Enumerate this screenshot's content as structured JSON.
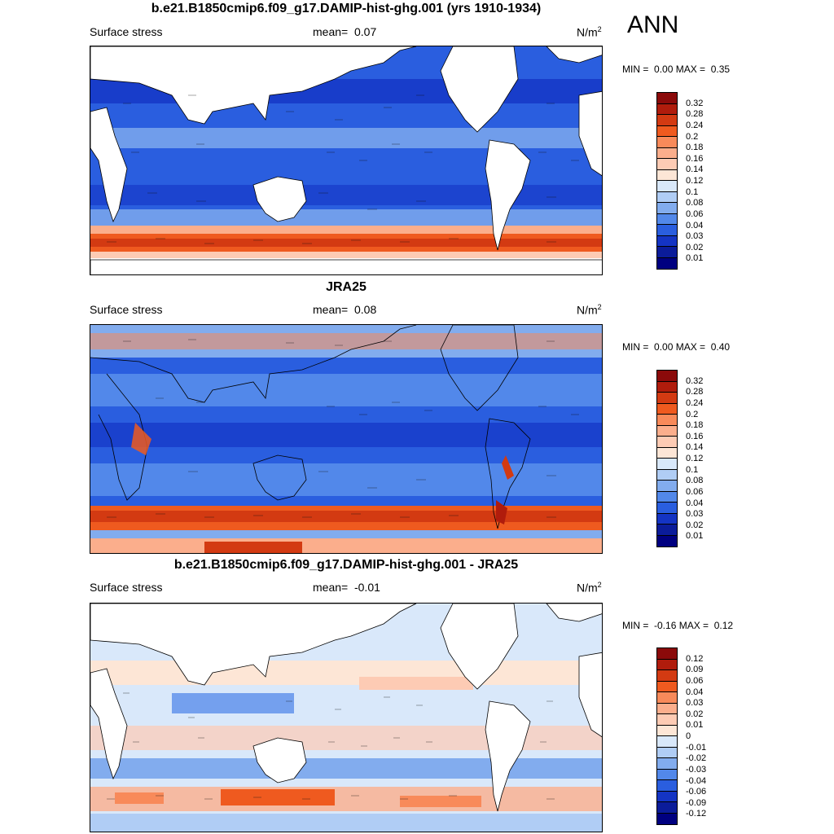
{
  "season": "ANN",
  "panels": [
    {
      "title": "b.e21.B1850cmip6.f09_g17.DAMIP-hist-ghg.001 (yrs 1910-1934)",
      "variable": "Surface stress",
      "mean_label": "mean=",
      "mean_value": "0.07",
      "units_base": "N/m",
      "units_exp": "2",
      "min_label": "MIN =",
      "min_value": "0.00",
      "max_label": "MAX =",
      "max_value": "0.35",
      "colorbar_labels": [
        "0.32",
        "0.28",
        "0.24",
        "0.2",
        "0.18",
        "0.16",
        "0.14",
        "0.12",
        "0.1",
        "0.08",
        "0.06",
        "0.04",
        "0.03",
        "0.02",
        "0.01"
      ],
      "colorbar_colors": [
        "#8b0a0a",
        "#b01c0c",
        "#d33a12",
        "#ef5a1f",
        "#f88a5a",
        "#fbae8c",
        "#fdcbb4",
        "#fde6d6",
        "#d9e8fa",
        "#b0cdf5",
        "#82acee",
        "#5288ea",
        "#2a5edf",
        "#1434c4",
        "#0b1c9a",
        "#000080"
      ]
    },
    {
      "title": "JRA25",
      "variable": "Surface stress",
      "mean_label": "mean=",
      "mean_value": "0.08",
      "units_base": "N/m",
      "units_exp": "2",
      "min_label": "MIN =",
      "min_value": "0.00",
      "max_label": "MAX =",
      "max_value": "0.40",
      "colorbar_labels": [
        "0.32",
        "0.28",
        "0.24",
        "0.2",
        "0.18",
        "0.16",
        "0.14",
        "0.12",
        "0.1",
        "0.08",
        "0.06",
        "0.04",
        "0.03",
        "0.02",
        "0.01"
      ],
      "colorbar_colors": [
        "#8b0a0a",
        "#b01c0c",
        "#d33a12",
        "#ef5a1f",
        "#f88a5a",
        "#fbae8c",
        "#fdcbb4",
        "#fde6d6",
        "#d9e8fa",
        "#b0cdf5",
        "#82acee",
        "#5288ea",
        "#2a5edf",
        "#1434c4",
        "#0b1c9a",
        "#000080"
      ]
    },
    {
      "title": "b.e21.B1850cmip6.f09_g17.DAMIP-hist-ghg.001 - JRA25",
      "variable": "Surface stress",
      "mean_label": "mean=",
      "mean_value": "-0.01",
      "units_base": "N/m",
      "units_exp": "2",
      "min_label": "MIN =",
      "min_value": "-0.16",
      "max_label": "MAX =",
      "max_value": "0.12",
      "colorbar_labels": [
        "0.12",
        "0.09",
        "0.06",
        "0.04",
        "0.03",
        "0.02",
        "0.01",
        "0",
        "-0.01",
        "-0.02",
        "-0.03",
        "-0.04",
        "-0.06",
        "-0.09",
        "-0.12"
      ],
      "colorbar_colors": [
        "#8b0a0a",
        "#b01c0c",
        "#d33a12",
        "#ef5a1f",
        "#f88a5a",
        "#fbae8c",
        "#fdcbb4",
        "#fde6d6",
        "#d9e8fa",
        "#b0cdf5",
        "#82acee",
        "#5288ea",
        "#2a5edf",
        "#1434c4",
        "#0b1c9a",
        "#000080"
      ]
    }
  ]
}
